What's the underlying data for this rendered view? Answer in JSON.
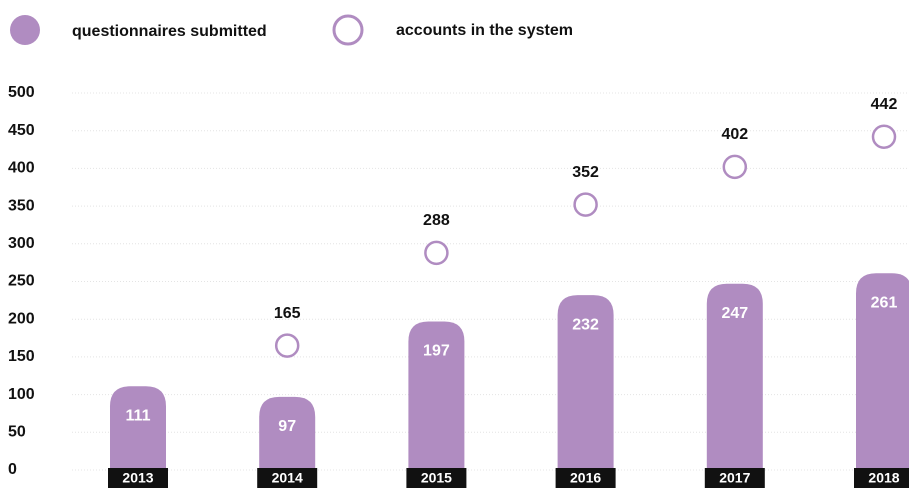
{
  "chart_data": {
    "type": "bar",
    "categories": [
      "2013",
      "2014",
      "2015",
      "2016",
      "2017",
      "2018"
    ],
    "series": [
      {
        "name": "questionnaires submitted",
        "color": "#b08cc1",
        "values": [
          111,
          97,
          197,
          232,
          247,
          261
        ]
      },
      {
        "name": "accounts in the system",
        "color": "#b08cc1",
        "values": [
          null,
          165,
          288,
          352,
          402,
          442
        ]
      }
    ],
    "ylim": [
      0,
      500
    ],
    "yticks": [
      0,
      50,
      100,
      150,
      200,
      250,
      300,
      350,
      400,
      450,
      500
    ],
    "grid": true
  }
}
